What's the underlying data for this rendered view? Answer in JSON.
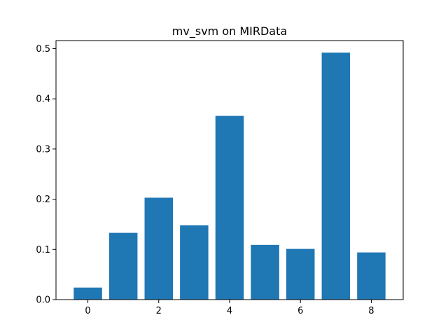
{
  "chart_data": {
    "type": "bar",
    "title": "mv_svm on MIRData",
    "xlabel": "",
    "ylabel": "",
    "x": [
      0,
      1,
      2,
      3,
      4,
      5,
      6,
      7,
      8
    ],
    "values": [
      0.024,
      0.133,
      0.203,
      0.148,
      0.366,
      0.109,
      0.101,
      0.492,
      0.094
    ],
    "xlim": [
      -0.9,
      8.9
    ],
    "ylim": [
      0,
      0.516
    ],
    "xticks": [
      0,
      2,
      4,
      6,
      8
    ],
    "xtick_labels": [
      "0",
      "2",
      "4",
      "6",
      "8"
    ],
    "yticks": [
      0.0,
      0.1,
      0.2,
      0.3,
      0.4,
      0.5
    ],
    "ytick_labels": [
      "0.0",
      "0.1",
      "0.2",
      "0.3",
      "0.4",
      "0.5"
    ],
    "bar_color": "#1f77b4",
    "grid": false,
    "legend": "none"
  }
}
